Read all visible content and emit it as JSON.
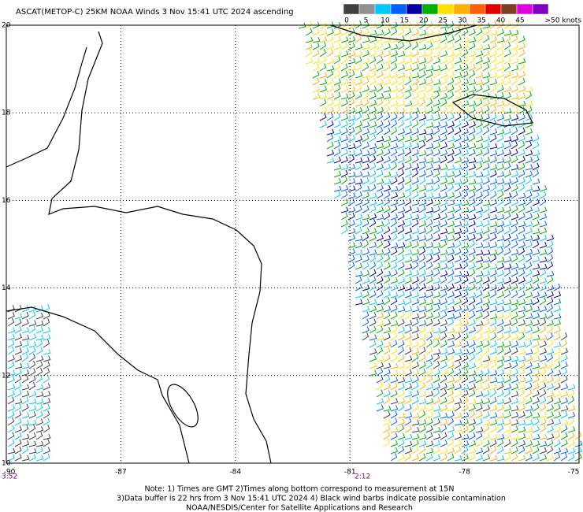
{
  "title": "ASCAT(METOP-C) 25KM NOAA Winds 3 Nov 15:41 UTC 2024 ascending",
  "colorbar": {
    "labels": [
      "0",
      "5",
      "10",
      "15",
      "20",
      "25",
      "30",
      "35",
      "40",
      "45",
      ">50 knots"
    ],
    "colors": [
      "#404040",
      "#909090",
      "#00c8ff",
      "#0060ff",
      "#0000a0",
      "#00b000",
      "#ffe000",
      "#ffb000",
      "#ff6000",
      "#e00000",
      "#804020",
      "#e000e0",
      "#8000c0"
    ]
  },
  "latitudes": [
    20,
    18,
    16,
    14,
    12,
    10
  ],
  "longitudes": [
    -90,
    -87,
    -84,
    -81,
    -78,
    -75
  ],
  "time_labels": [
    "3:52",
    "2:12"
  ],
  "notes": [
    "Note: 1) Times are GMT 2)Times along bottom correspond to measurement at 15N",
    "3)Data buffer is 22 hrs from 3 Nov 15:41 UTC 2024 4) Black wind barbs indicate possible contamination",
    "NOAA/NESDIS/Center for Satellite Applications and Research"
  ]
}
